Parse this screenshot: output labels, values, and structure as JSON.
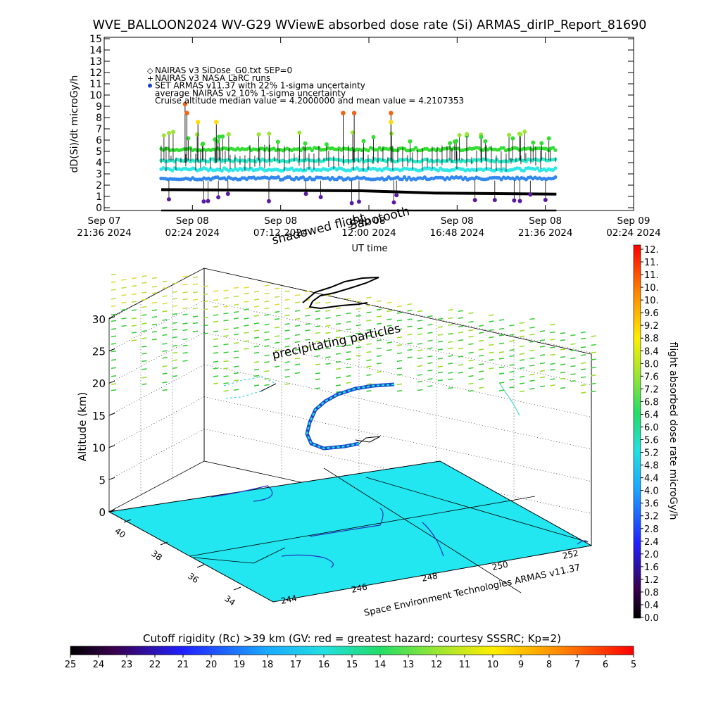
{
  "title": "WVE_BALLOON2024 WV-G29 WViewE absorbed dose rate (Si) ARMAS_dirIP_Report_81690",
  "chart_data": [
    {
      "type": "scatter",
      "ylabel": "dD(Si)/dt microGy/h",
      "xlabel": "UT time",
      "ylim": [
        0,
        15
      ],
      "yticks": [
        "0",
        "1",
        "2",
        "3",
        "4",
        "5",
        "6",
        "7",
        "8",
        "9",
        "10",
        "11",
        "12",
        "13",
        "14",
        "15"
      ],
      "xticks": [
        {
          "d": "Sep 07",
          "t": "21:36 2024"
        },
        {
          "d": "Sep 08",
          "t": "02:24 2024"
        },
        {
          "d": "Sep 08",
          "t": "07:12 2024"
        },
        {
          "d": "Sep 08",
          "t": "12:00 2024"
        },
        {
          "d": "Sep 08",
          "t": "16:48 2024"
        },
        {
          "d": "Sep 08",
          "t": "21:36 2024"
        },
        {
          "d": "Sep 09",
          "t": "02:24 2024"
        }
      ],
      "legend": [
        {
          "marker": "◇",
          "text": "NAIRAS v3 SiDose_G0.txt SEP=0"
        },
        {
          "marker": "+",
          "text": "NAIRAS v3 NASA LaRC runs"
        },
        {
          "marker": "●",
          "text": "SET ARMAS v11.37 with 22% 1-sigma uncertainty"
        },
        {
          "marker": "",
          "text": "average NAIRAS v2 10% 1-sigma uncertainty"
        },
        {
          "marker": "",
          "text": "Cruise altitude median value = 4.2000000 and mean value = 4.2107353"
        }
      ],
      "overlay_labels": [
        "shadowed flight",
        "Sabotooth"
      ],
      "series_levels_approx": [
        {
          "value": 4.2,
          "color": "#2ee8c8"
        },
        {
          "value": 3.4,
          "color": "#2ee8e8"
        },
        {
          "value": 5.2,
          "color": "#33dd33"
        },
        {
          "value": 2.6,
          "color": "#3388ee"
        },
        {
          "value": 1.6,
          "color": "#000000"
        }
      ],
      "spikes_approx": [
        {
          "x_hours": 4.4,
          "value": 9.2,
          "color": "#ee6611"
        },
        {
          "x_hours": 4.5,
          "value": 8.4,
          "color": "#ee6611"
        },
        {
          "x_hours": 5.1,
          "value": 7.6,
          "color": "#ffdd00"
        },
        {
          "x_hours": 6.1,
          "value": 7.6,
          "color": "#ffdd00"
        },
        {
          "x_hours": 13.0,
          "value": 8.4,
          "color": "#ee6611"
        },
        {
          "x_hours": 13.6,
          "value": 8.4,
          "color": "#ee6611"
        },
        {
          "x_hours": 15.6,
          "value": 8.4,
          "color": "#ee6611"
        },
        {
          "x_hours": 15.6,
          "value": 7.6,
          "color": "#ffdd00"
        }
      ]
    },
    {
      "type": "scatter",
      "zlabel": "Altitude (km)",
      "zticks": [
        "0",
        "5",
        "10",
        "15",
        "20",
        "25",
        "30"
      ],
      "lat_ticks": [
        "40",
        "38",
        "36",
        "34"
      ],
      "lon_ticks": [
        "244",
        "246",
        "248",
        "250",
        "252"
      ],
      "annotation": "precipitating particles",
      "credit": "Space Environment Technologies ARMAS v11.37"
    }
  ],
  "dose_colorbar": {
    "label": "flight absorbed dose rate microGy/h",
    "ticks": [
      "12.",
      "11.",
      "11.",
      "10.",
      "10.",
      "9.6",
      "9.2",
      "8.8",
      "8.4",
      "8.0",
      "7.6",
      "7.2",
      "6.8",
      "6.4",
      "6.0",
      "5.6",
      "5.2",
      "4.8",
      "4.4",
      "4.0",
      "3.6",
      "3.2",
      "2.8",
      "2.4",
      "2.0",
      "1.6",
      "1.2",
      "0.8",
      "0.4",
      "0.0"
    ]
  },
  "rigidity_colorbar": {
    "title": "Cutoff rigidity (Rc) >39 km (GV: red = greatest hazard; courtesy SSSRC; Kp=2)",
    "ticks": [
      "25",
      "24",
      "23",
      "22",
      "21",
      "20",
      "19",
      "18",
      "17",
      "16",
      "15",
      "14",
      "13",
      "12",
      "11",
      "10",
      "9",
      "8",
      "7",
      "6",
      "5"
    ]
  }
}
